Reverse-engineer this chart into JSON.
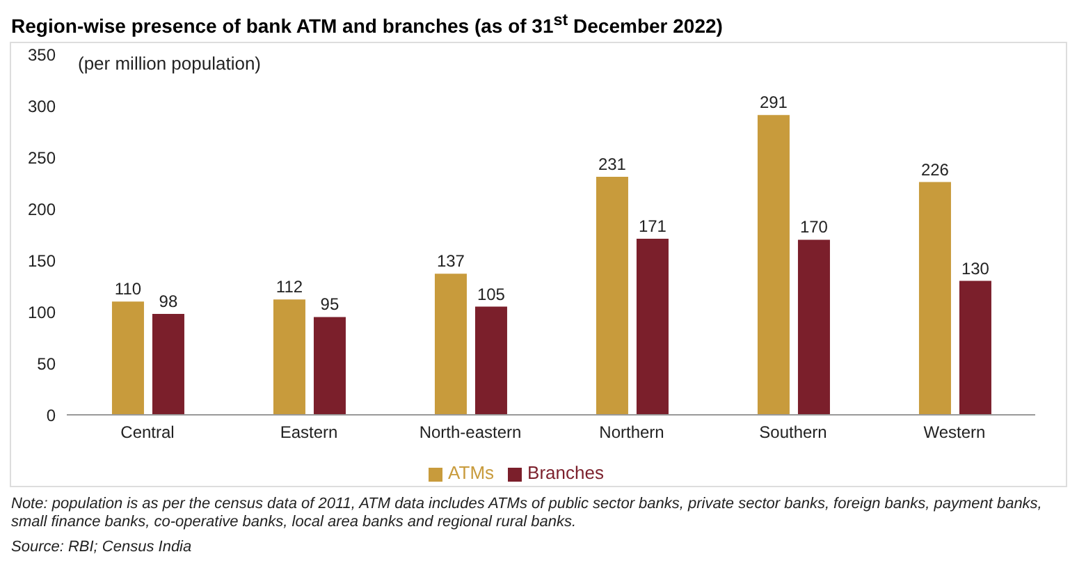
{
  "chart_data": {
    "type": "bar",
    "title": "Region-wise presence of bank ATM and branches (as of 31$^{st}$ December 2022)",
    "ylabel": "(per million population)",
    "categories": [
      "Central",
      "Eastern",
      "North-eastern",
      "Northern",
      "Southern",
      "Western"
    ],
    "series": [
      {
        "name": "ATMs",
        "color": "#c89b3c",
        "values": [
          110,
          112,
          137,
          231,
          291,
          226
        ]
      },
      {
        "name": "Branches",
        "color": "#7b1f2b",
        "values": [
          98,
          95,
          105,
          171,
          170,
          130
        ]
      }
    ],
    "ylim": [
      0,
      350
    ],
    "yticks": [
      0,
      50,
      100,
      150,
      200,
      250,
      300,
      350
    ],
    "data_labels": true,
    "grid": false,
    "legend": "bottom",
    "annotations": [
      "Note: population is as per the census data of 2011, ATM data includes ATMs of public sector banks, private sector banks, foreign banks, payment banks, small finance banks, co-operative banks, local area banks and regional rural banks.",
      "Source: RBI; Census India"
    ]
  }
}
